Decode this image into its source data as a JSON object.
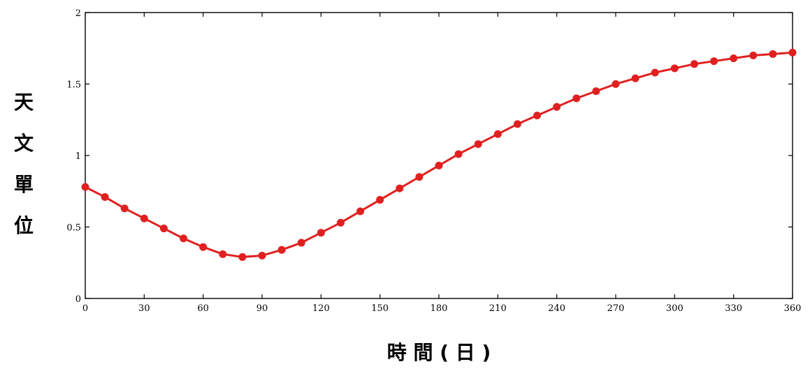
{
  "chart_data": {
    "type": "line",
    "title": "",
    "xlabel": "時 間 ( 日 )",
    "ylabel_chars": [
      "天",
      "文",
      "單",
      "位"
    ],
    "xlim": [
      0,
      360
    ],
    "ylim": [
      0,
      2
    ],
    "x_ticks": [
      0,
      30,
      60,
      90,
      120,
      150,
      180,
      210,
      240,
      270,
      300,
      330,
      360
    ],
    "x_tick_labels": [
      "0",
      "30",
      "60",
      "90",
      "120",
      "150",
      "180",
      "210",
      "240",
      "270",
      "300",
      "330",
      "360"
    ],
    "y_ticks": [
      0,
      0.5,
      1,
      1.5,
      2
    ],
    "y_tick_labels": [
      "0",
      "0.5",
      "1",
      "1.5",
      "2"
    ],
    "grid": false,
    "series": [
      {
        "color": "#e02020",
        "marker": "circle",
        "x": [
          0,
          10,
          20,
          30,
          40,
          50,
          60,
          70,
          80,
          90,
          100,
          110,
          120,
          130,
          140,
          150,
          160,
          170,
          180,
          190,
          200,
          210,
          220,
          230,
          240,
          250,
          260,
          270,
          280,
          290,
          300,
          310,
          320,
          330,
          340,
          350,
          360
        ],
        "values": [
          0.78,
          0.71,
          0.63,
          0.56,
          0.49,
          0.42,
          0.36,
          0.31,
          0.29,
          0.3,
          0.34,
          0.39,
          0.46,
          0.53,
          0.61,
          0.69,
          0.77,
          0.85,
          0.93,
          1.01,
          1.08,
          1.15,
          1.22,
          1.28,
          1.34,
          1.4,
          1.45,
          1.5,
          1.54,
          1.58,
          1.61,
          1.64,
          1.66,
          1.68,
          1.7,
          1.71,
          1.72
        ]
      }
    ]
  }
}
